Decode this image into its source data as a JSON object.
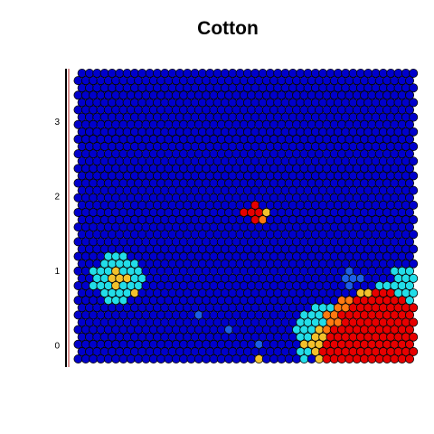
{
  "chart_data": {
    "type": "heatmap",
    "subtype": "hexagonal-som-grid",
    "title": "Cotton",
    "xlabel": "",
    "ylabel": "",
    "y_ticks": [
      "0",
      "1",
      "2",
      "3"
    ],
    "ylim": [
      -0.3,
      3.7
    ],
    "grid_rows": 40,
    "grid_cols": 45,
    "color_scale": [
      "#0000cc",
      "#1e5ee6",
      "#22dde8",
      "#f2c12c",
      "#ff7a10",
      "#e60000"
    ],
    "color_levels": {
      "0": "low",
      "5": "high"
    },
    "cell_outline": "#000000",
    "axis_color": "#000000",
    "axis_accent_color": "#b22222",
    "clusters": [
      {
        "row": 20,
        "col": 23,
        "level": 5,
        "radius": 1.2
      },
      {
        "row": 19,
        "col": 24,
        "level": 4,
        "radius": 0.6
      },
      {
        "row": 20,
        "col": 25,
        "level": 3,
        "radius": 0.6
      },
      {
        "row": 11,
        "col": 5,
        "level": 2,
        "radius": 3.4
      },
      {
        "row": 11,
        "col": 5,
        "level": 3,
        "radius": 1.2
      },
      {
        "row": 9,
        "col": 7,
        "level": 3,
        "radius": 0.7
      },
      {
        "row": 3,
        "col": 40,
        "level": 5,
        "radius": 6.2
      },
      {
        "row": 1,
        "col": 35,
        "level": 5,
        "radius": 3.0
      },
      {
        "row": 5,
        "col": 36,
        "level": 4,
        "radius": 3.2
      },
      {
        "row": 2,
        "col": 32,
        "level": 3,
        "radius": 2.0
      },
      {
        "row": 6,
        "col": 38,
        "level": 3,
        "radius": 3.5
      },
      {
        "row": 8,
        "col": 42,
        "level": 2,
        "radius": 3.0
      },
      {
        "row": 11,
        "col": 43,
        "level": 2,
        "radius": 1.5
      },
      {
        "row": 4,
        "col": 32,
        "level": 2,
        "radius": 3.5
      },
      {
        "row": 1,
        "col": 30,
        "level": 2,
        "radius": 1.2
      },
      {
        "row": 11,
        "col": 36,
        "level": 1,
        "radius": 1.2
      },
      {
        "row": 4,
        "col": 20,
        "level": 1,
        "radius": 0.6
      },
      {
        "row": 2,
        "col": 24,
        "level": 1,
        "radius": 0.6
      },
      {
        "row": 6,
        "col": 16,
        "level": 1,
        "radius": 0.6
      },
      {
        "row": 12,
        "col": 3,
        "level": 1,
        "radius": 0.6
      },
      {
        "row": 0,
        "col": 24,
        "level": 3,
        "radius": 0.6
      }
    ]
  }
}
